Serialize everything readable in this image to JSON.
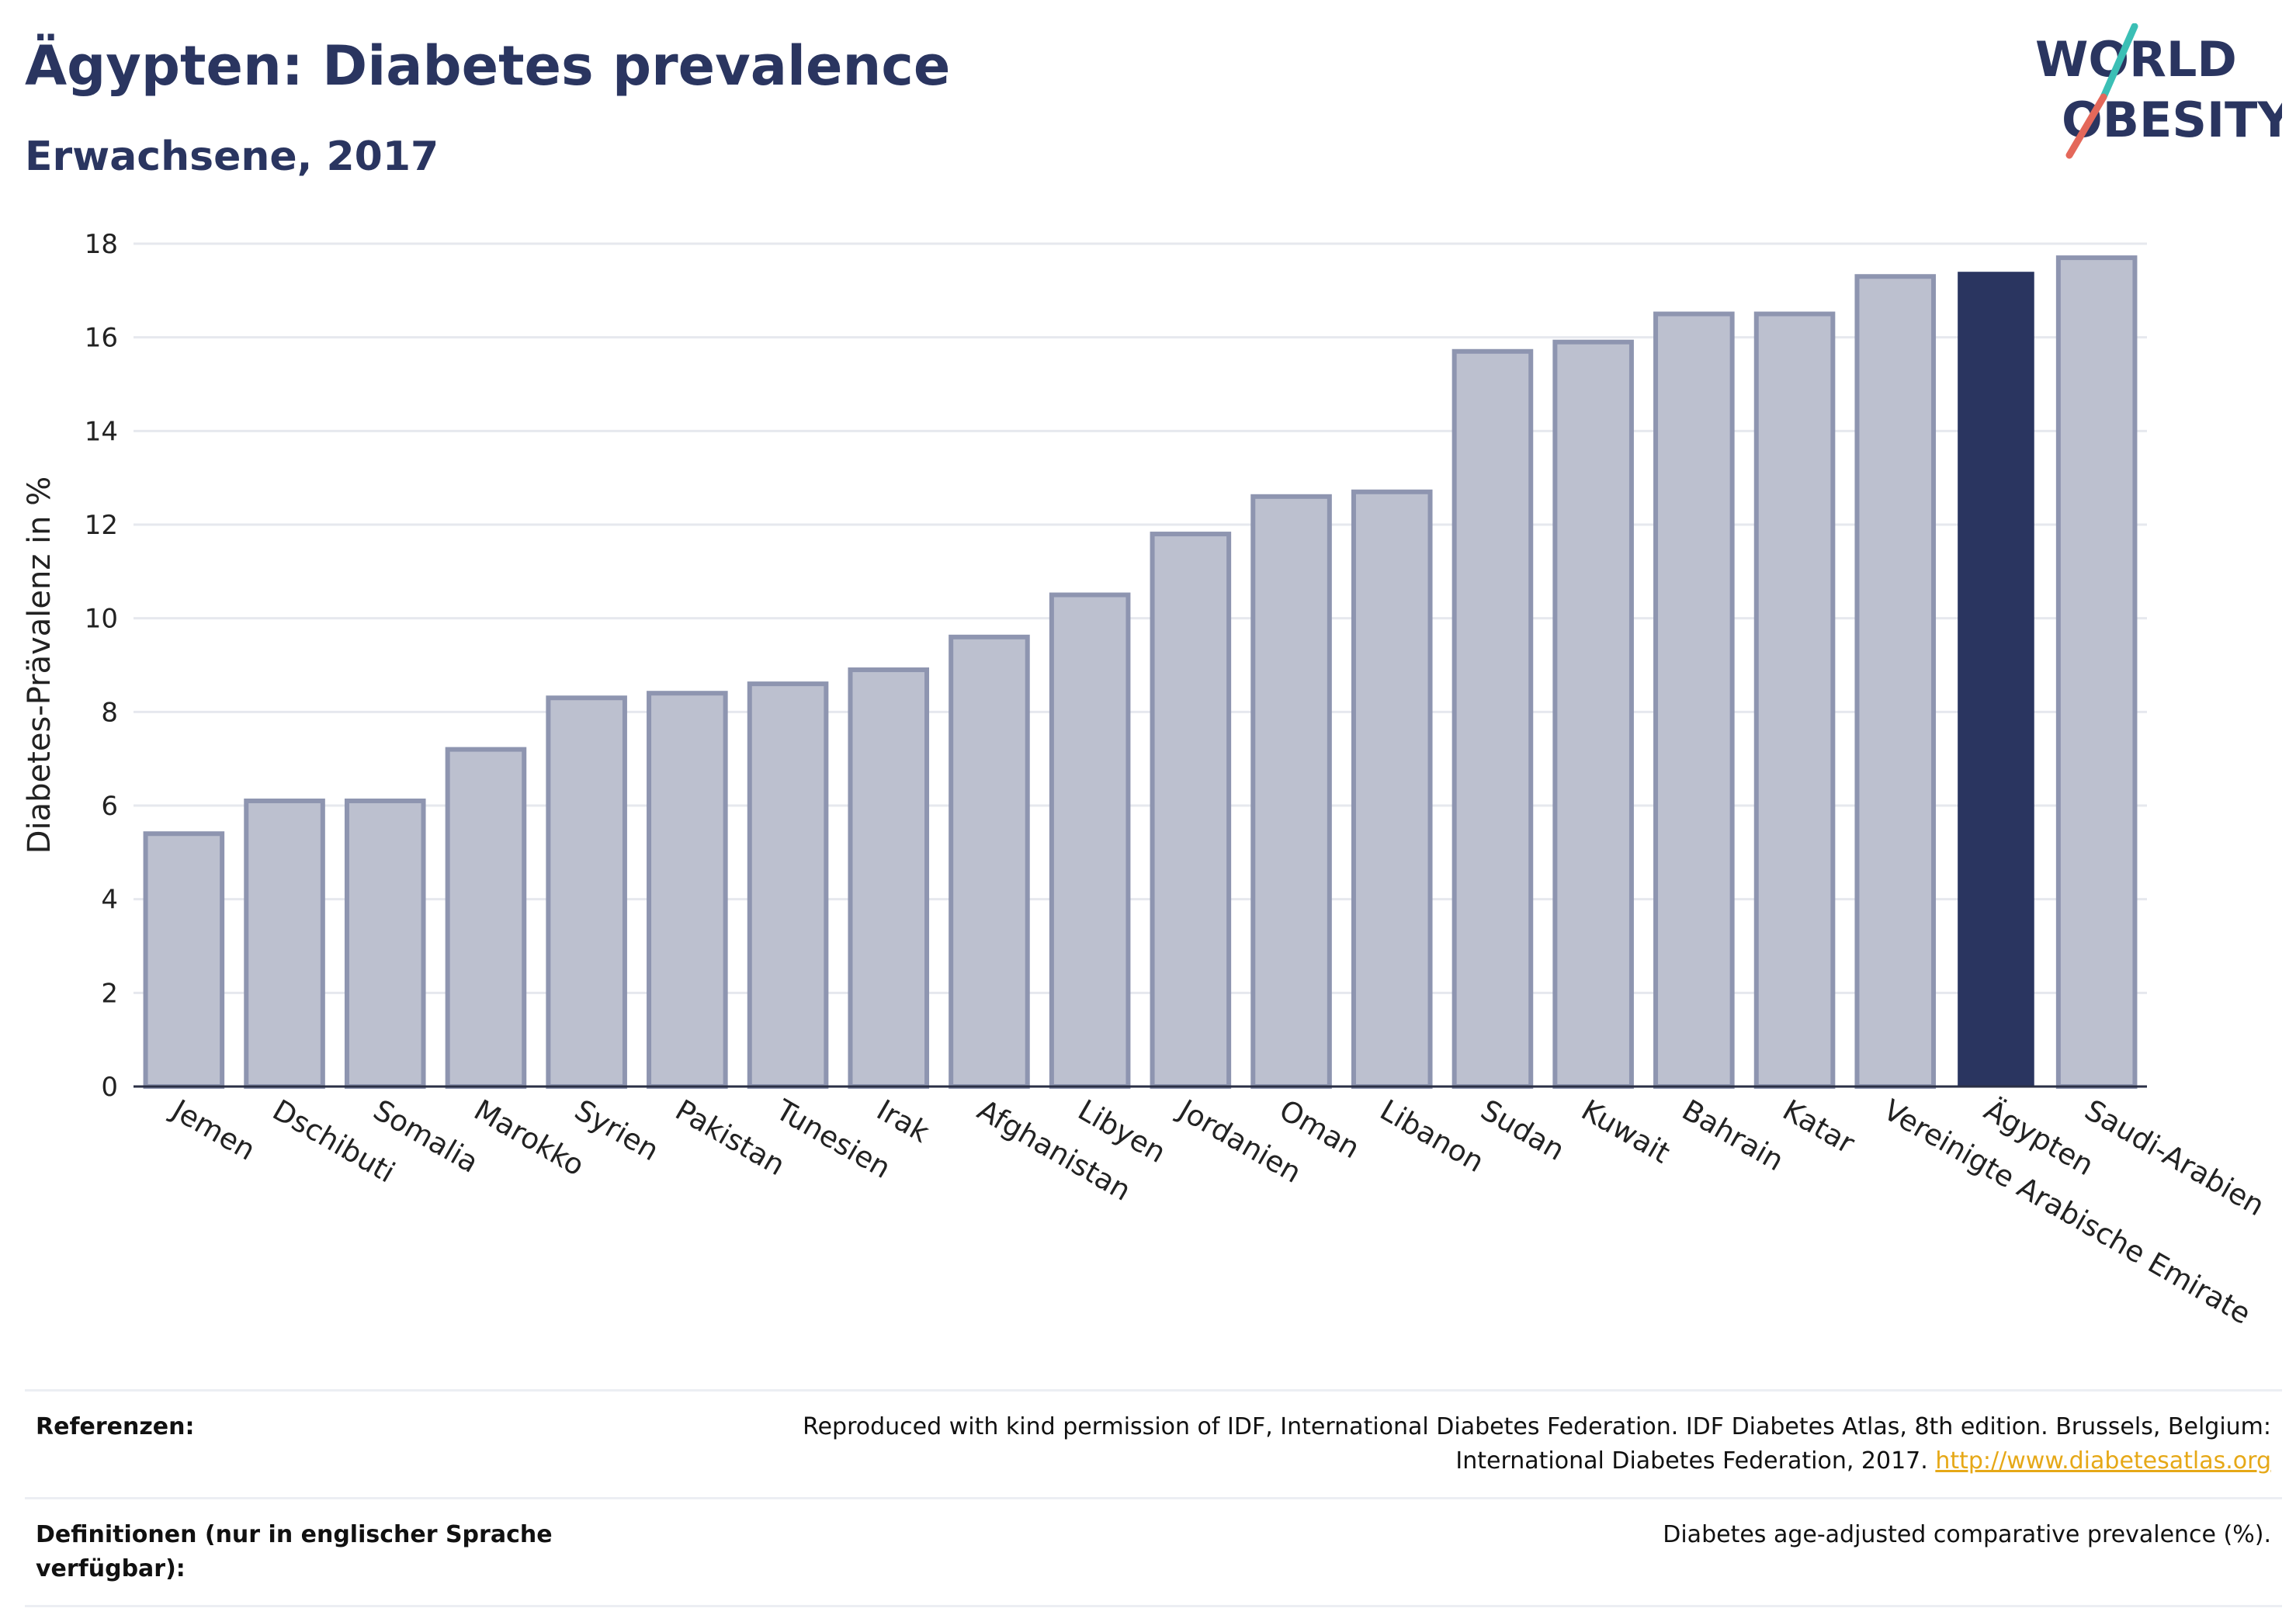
{
  "header": {
    "title": "Ägypten: Diabetes prevalence",
    "subtitle": "Erwachsene, 2017"
  },
  "logo": {
    "line1": "WORLD",
    "line2": "OBESITY",
    "colors": {
      "text": "#2a3560",
      "slash_teal": "#3bbfb5",
      "slash_red": "#e4685a"
    }
  },
  "chart_data": {
    "type": "bar",
    "title": "",
    "xlabel": "",
    "ylabel": "Diabetes-Prävalenz in %",
    "ylim": [
      0,
      18
    ],
    "yticks": [
      0,
      2,
      4,
      6,
      8,
      10,
      12,
      14,
      16,
      18
    ],
    "grid": true,
    "highlight_category": "Ägypten",
    "colors": {
      "bar": "#bcc0cf",
      "bar_stroke": "#8e95b0",
      "highlight": "#2a3560",
      "grid": "#e6e8ee"
    },
    "categories": [
      "Jemen",
      "Dschibuti",
      "Somalia",
      "Marokko",
      "Syrien",
      "Pakistan",
      "Tunesien",
      "Irak",
      "Afghanistan",
      "Libyen",
      "Jordanien",
      "Oman",
      "Libanon",
      "Sudan",
      "Kuwait",
      "Bahrain",
      "Katar",
      "Vereinigte Arabische Emirate",
      "Ägypten",
      "Saudi-Arabien"
    ],
    "values": [
      5.4,
      6.1,
      6.1,
      7.2,
      8.3,
      8.4,
      8.6,
      8.9,
      9.6,
      10.5,
      11.8,
      12.6,
      12.7,
      15.7,
      15.9,
      16.5,
      16.5,
      17.3,
      17.4,
      17.7
    ]
  },
  "references": {
    "refs_label": "Referenzen:",
    "refs_text": "Reproduced with kind permission of IDF, International Diabetes Federation. IDF Diabetes Atlas, 8th edition. Brussels, Belgium: International Diabetes Federation, 2017.",
    "refs_link": "http://www.diabetesatlas.org",
    "defs_label": "Definitionen (nur in englischer Sprache verfügbar):",
    "defs_text": "Diabetes age-adjusted comparative prevalence (%)."
  }
}
